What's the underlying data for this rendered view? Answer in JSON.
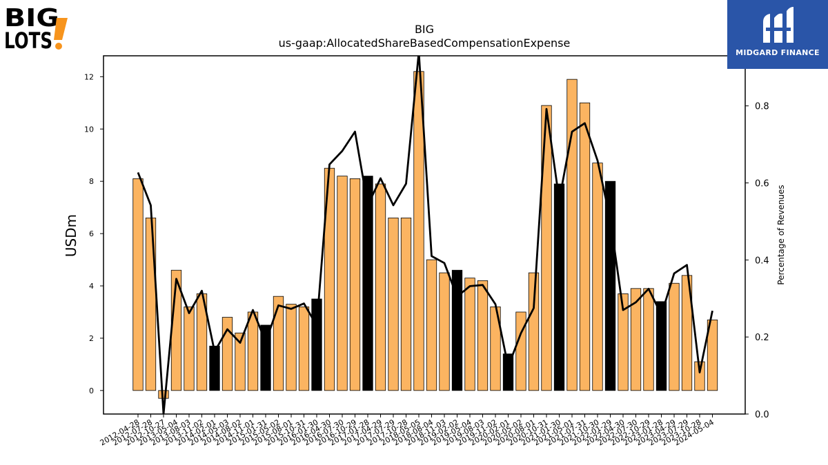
{
  "brand": {
    "ticker": "BIG",
    "logo_text": "BIG LOTS!",
    "partner": "MIDGARD FINANCE"
  },
  "colors": {
    "bar": "#fbb461",
    "bar_highlight": "#000000",
    "line": "#000000",
    "partner_bg": "#2a55a8"
  },
  "chart_data": {
    "type": "bar",
    "title": "BIG",
    "subtitle": "us-gaap:AllocatedShareBasedCompensationExpense",
    "ylabel": "USDm",
    "y2label": "Percentage of Revenues",
    "ylim": [
      -0.9,
      12.8
    ],
    "y2lim": [
      0.0,
      0.93
    ],
    "yticks": [
      0,
      2,
      4,
      6,
      8,
      10,
      12
    ],
    "y2ticks": [
      0.0,
      0.2,
      0.4,
      0.6,
      0.8
    ],
    "categories": [
      "2012-04-28",
      "2012-07-28",
      "2012-10-27",
      "2013-05-04",
      "2013-08-03",
      "2013-11-02",
      "2014-02-01",
      "2014-05-03",
      "2014-08-02",
      "2014-11-01",
      "2015-01-31",
      "2015-05-02",
      "2015-08-01",
      "2015-10-31",
      "2016-01-30",
      "2016-04-30",
      "2016-07-30",
      "2016-10-29",
      "2017-01-28",
      "2017-04-29",
      "2017-07-29",
      "2017-10-28",
      "2018-05-05",
      "2018-08-04",
      "2018-11-03",
      "2019-02-02",
      "2019-05-04",
      "2019-08-03",
      "2019-11-02",
      "2020-02-01",
      "2020-05-02",
      "2020-08-01",
      "2020-10-31",
      "2021-01-30",
      "2021-05-01",
      "2021-07-31",
      "2021-10-30",
      "2022-01-29",
      "2022-04-30",
      "2022-07-30",
      "2022-10-29",
      "2023-01-28",
      "2023-04-29",
      "2023-07-29",
      "2023-10-28",
      "2024-05-04"
    ],
    "highlight": [
      false,
      false,
      false,
      false,
      false,
      false,
      true,
      false,
      false,
      false,
      true,
      false,
      false,
      false,
      true,
      false,
      false,
      false,
      true,
      false,
      false,
      false,
      false,
      false,
      false,
      true,
      false,
      false,
      false,
      true,
      false,
      false,
      false,
      true,
      false,
      false,
      false,
      true,
      false,
      false,
      false,
      true,
      false,
      false,
      false,
      false
    ],
    "series": [
      {
        "name": "",
        "axis": "left",
        "kind": "bar",
        "values": [
          8.1,
          6.6,
          -0.3,
          4.6,
          3.2,
          3.7,
          1.7,
          2.8,
          2.2,
          3.0,
          2.5,
          3.6,
          3.3,
          3.2,
          3.5,
          8.5,
          8.2,
          8.1,
          8.2,
          7.9,
          6.6,
          6.6,
          12.2,
          5.0,
          4.5,
          4.6,
          4.3,
          4.2,
          3.2,
          1.4,
          3.0,
          4.5,
          10.9,
          7.9,
          11.9,
          11.0,
          8.7,
          8.0,
          3.7,
          3.9,
          3.9,
          3.4,
          4.1,
          4.4,
          1.1,
          2.7
        ]
      },
      {
        "name": "",
        "axis": "right",
        "kind": "line",
        "values": [
          0.627,
          0.542,
          0.0,
          0.351,
          0.262,
          0.32,
          0.162,
          0.22,
          0.185,
          0.27,
          0.187,
          0.282,
          0.273,
          0.287,
          0.23,
          0.648,
          0.683,
          0.733,
          0.542,
          0.612,
          0.542,
          0.598,
          0.94,
          0.41,
          0.392,
          0.305,
          0.332,
          0.335,
          0.285,
          0.123,
          0.21,
          0.275,
          0.792,
          0.555,
          0.733,
          0.755,
          0.658,
          0.505,
          0.27,
          0.29,
          0.325,
          0.258,
          0.365,
          0.387,
          0.108,
          0.268
        ]
      }
    ]
  }
}
